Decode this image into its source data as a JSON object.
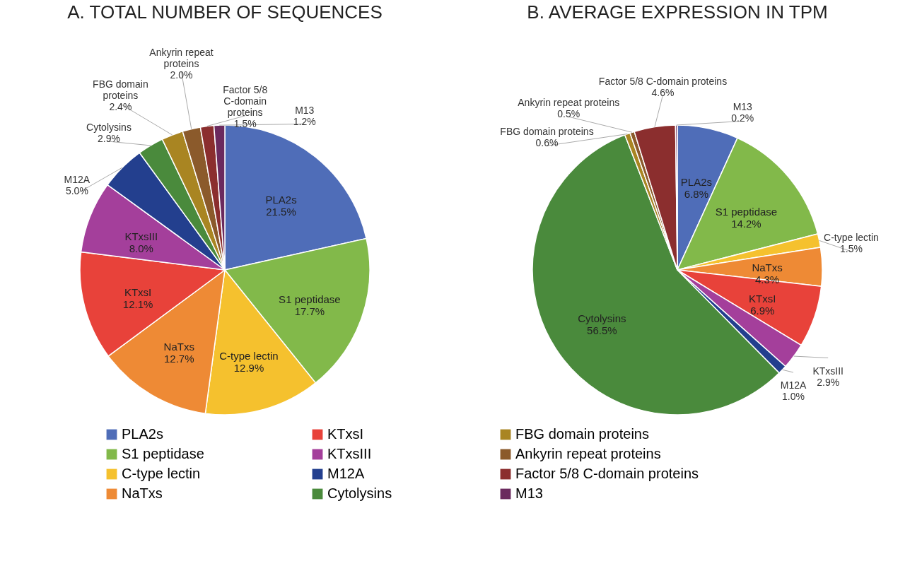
{
  "chart_data": [
    {
      "type": "pie",
      "title": "A. TOTAL NUMBER OF SEQUENCES",
      "legend": "bottom",
      "categories": [
        "PLA2s",
        "S1 peptidase",
        "C-type lectin",
        "NaTxs",
        "KTxsI",
        "KTxsIII",
        "M12A",
        "Cytolysins",
        "FBG domain proteins",
        "Ankyrin repeat proteins",
        "Factor 5/8 C-domain proteins",
        "M13"
      ],
      "values": [
        21.5,
        17.7,
        12.9,
        12.7,
        12.1,
        8.0,
        5.0,
        2.9,
        2.4,
        2.0,
        1.5,
        1.2
      ],
      "value_labels": [
        "21.5%",
        "17.7%",
        "12.9%",
        "12.7%",
        "12.1%",
        "8.0%",
        "5.0%",
        "2.9%",
        "2.4%",
        "2.0%",
        "1.5%",
        "1.2%"
      ],
      "colors": [
        "#4f6db8",
        "#82b94a",
        "#f5c12e",
        "#ee8a35",
        "#e8423a",
        "#a43f9b",
        "#233f8e",
        "#4a8a3c",
        "#a98522",
        "#8b5a2b",
        "#8b2e2e",
        "#6b2a5e"
      ]
    },
    {
      "type": "pie",
      "title": "B. AVERAGE EXPRESSION IN TPM",
      "categories": [
        "PLA2s",
        "S1 peptidase",
        "C-type lectin",
        "NaTxs",
        "KTxsI",
        "KTxsIII",
        "M12A",
        "Cytolysins",
        "FBG domain proteins",
        "Ankyrin repeat proteins",
        "Factor 5/8 C-domain proteins",
        "M13"
      ],
      "values": [
        6.8,
        14.2,
        1.5,
        4.3,
        6.9,
        2.9,
        1.0,
        56.5,
        0.6,
        0.5,
        4.6,
        0.2
      ],
      "value_labels": [
        "6.8%",
        "14.2%",
        "1.5%",
        "4.3%",
        "6.9%",
        "2.9%",
        "1.0%",
        "56.5%",
        "0.6%",
        "0.5%",
        "4.6%",
        "0.2%"
      ],
      "colors": [
        "#4f6db8",
        "#82b94a",
        "#f5c12e",
        "#ee8a35",
        "#e8423a",
        "#a43f9b",
        "#233f8e",
        "#4a8a3c",
        "#a98522",
        "#8b5a2b",
        "#8b2e2e",
        "#6b2a5e"
      ]
    }
  ]
}
